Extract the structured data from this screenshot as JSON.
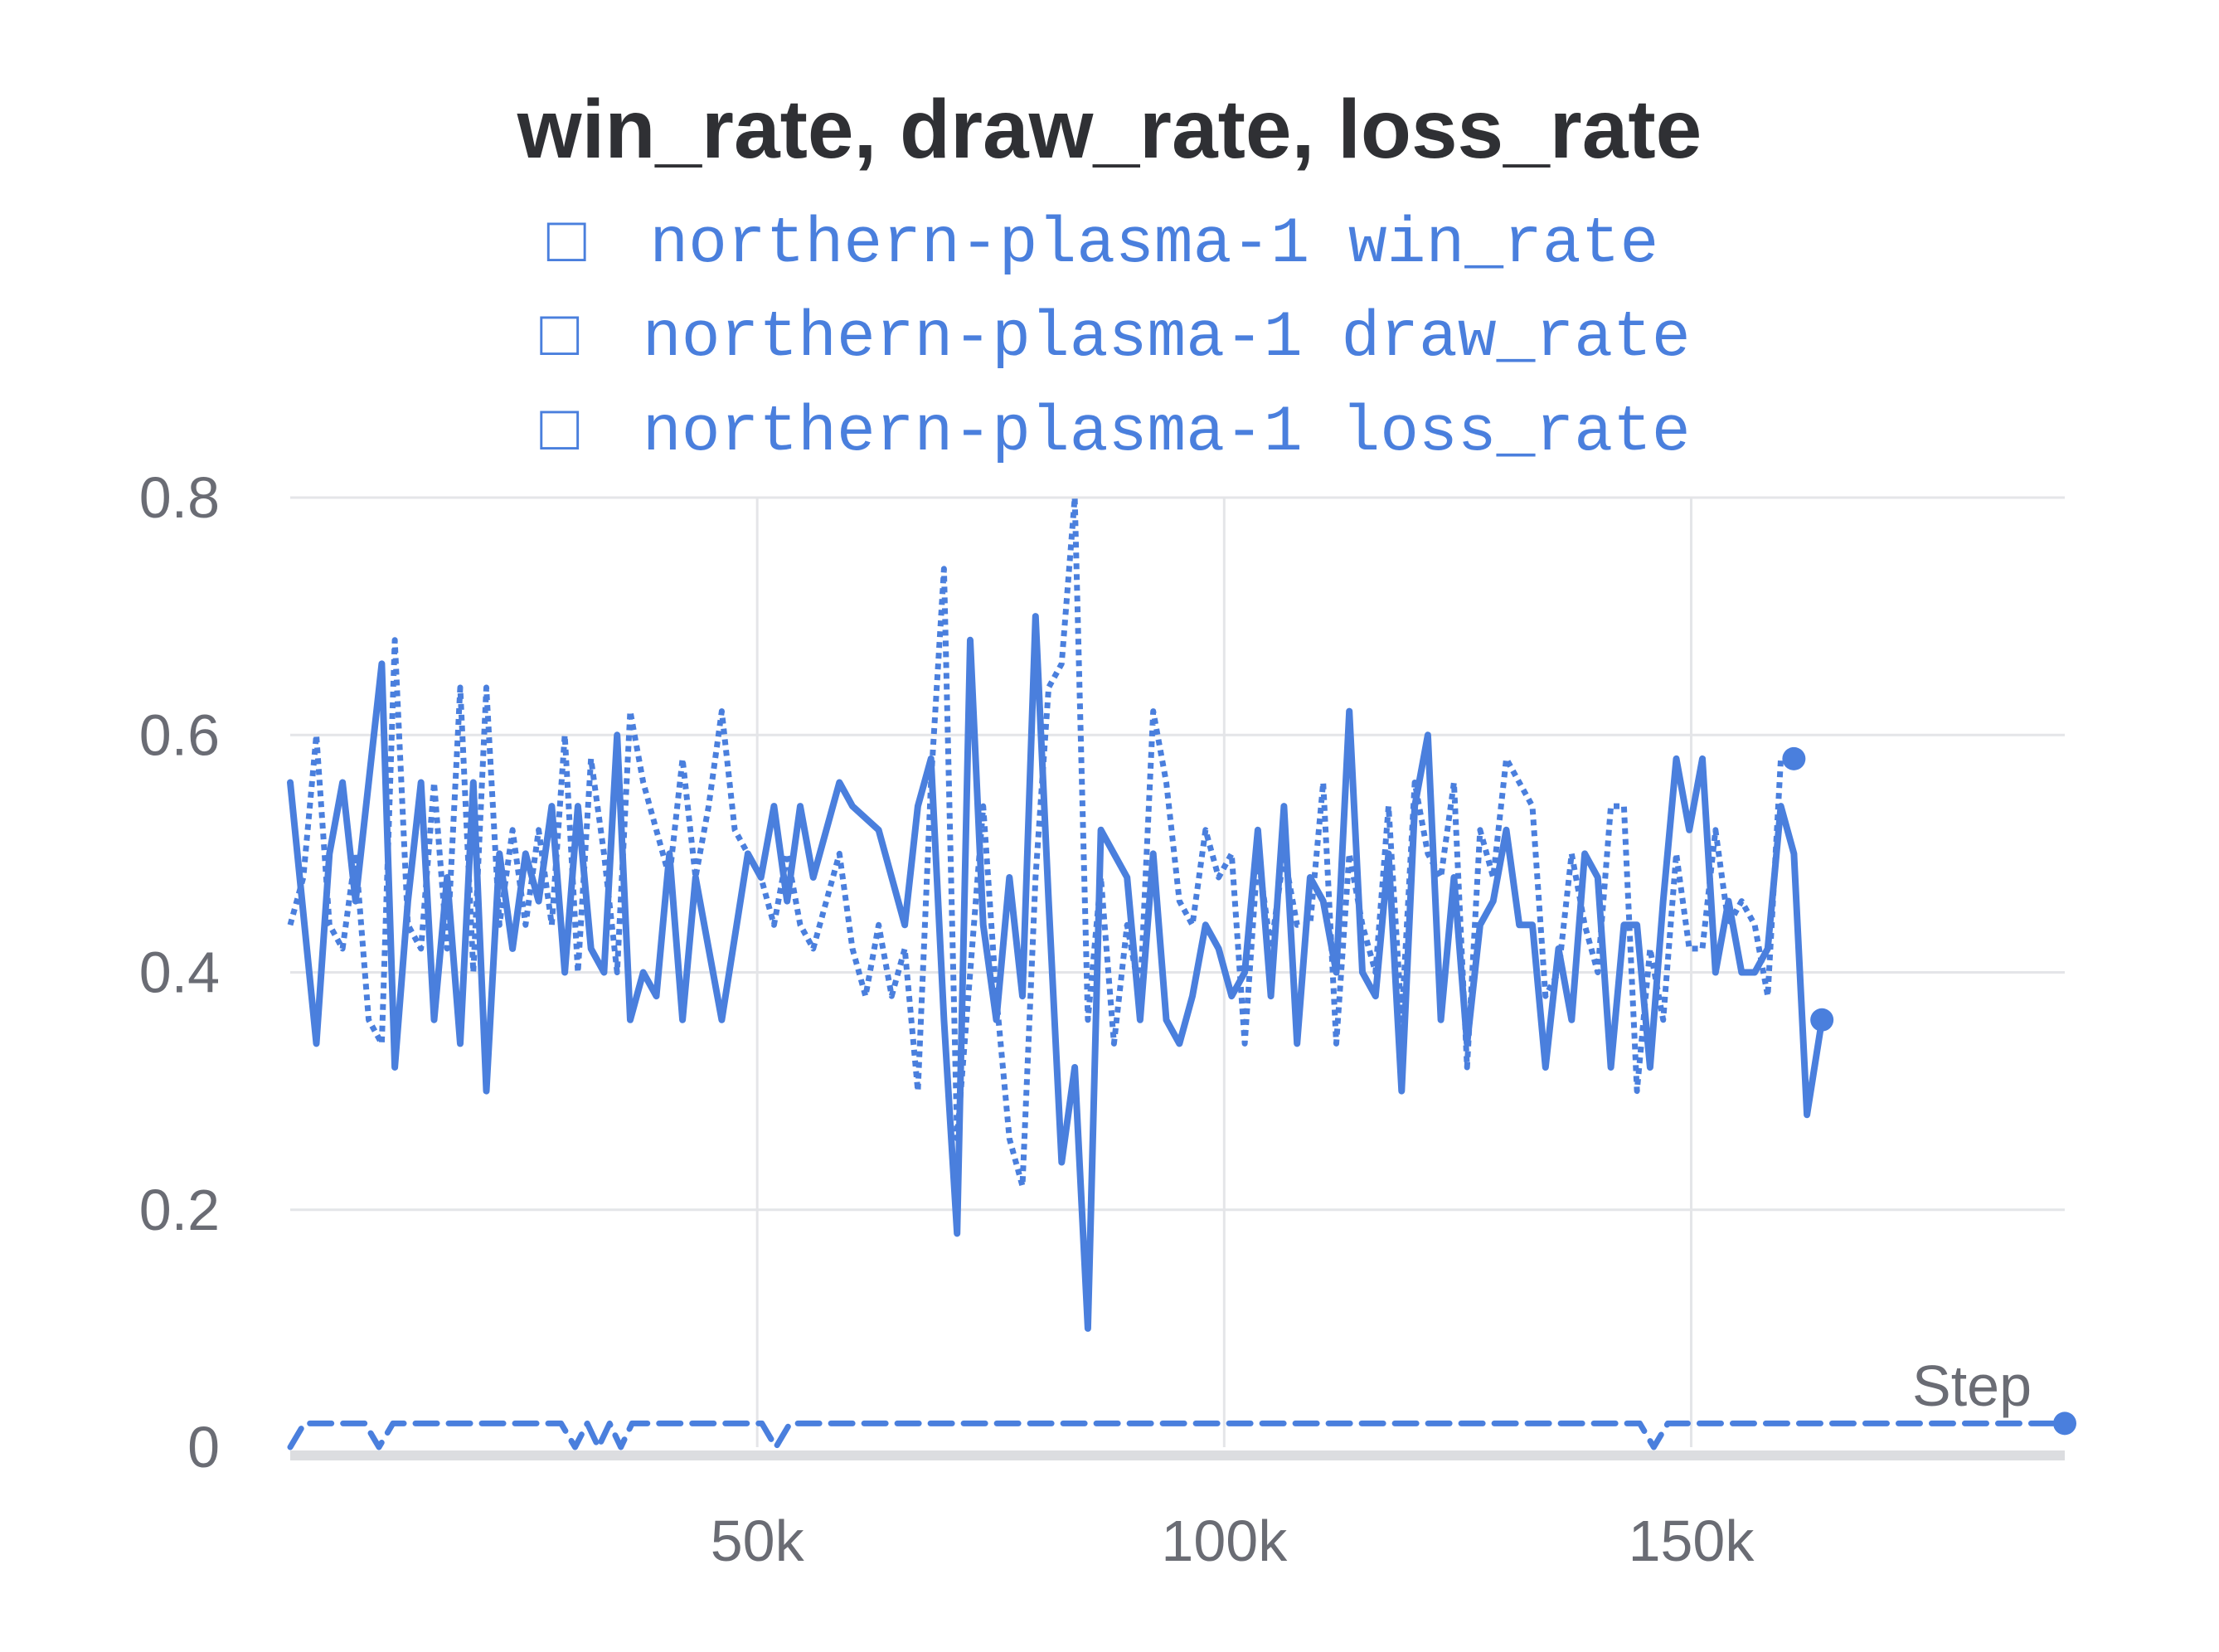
{
  "chart_data": {
    "type": "line",
    "title": "win_rate, draw_rate, loss_rate",
    "xlabel": "Step",
    "ylabel": "",
    "xlim": [
      0,
      190000
    ],
    "ylim": [
      0,
      0.8
    ],
    "x_ticks": [
      50000,
      100000,
      150000
    ],
    "x_tick_labels": [
      "50k",
      "100k",
      "150k"
    ],
    "y_ticks": [
      0,
      0.2,
      0.4,
      0.6,
      0.8
    ],
    "y_tick_labels": [
      "0",
      "0.2",
      "0.4",
      "0.6",
      "0.8"
    ],
    "grid": true,
    "legend_placement": "top",
    "line_color": "#4a7fdd",
    "legend": [
      {
        "marker": "□",
        "label": "northern-plasma-1 win_rate"
      },
      {
        "marker": "□",
        "label": "northern-plasma-1 draw_rate"
      },
      {
        "marker": "□",
        "label": "northern-plasma-1 loss_rate"
      }
    ],
    "series": [
      {
        "name": "northern-plasma-1 win_rate",
        "style": "solid",
        "points": [
          [
            0,
            0.56
          ],
          [
            2800,
            0.34
          ],
          [
            4200,
            0.5
          ],
          [
            5600,
            0.56
          ],
          [
            7000,
            0.46
          ],
          [
            8400,
            0.56
          ],
          [
            9800,
            0.66
          ],
          [
            11200,
            0.32
          ],
          [
            12600,
            0.46
          ],
          [
            14000,
            0.56
          ],
          [
            15400,
            0.36
          ],
          [
            16800,
            0.48
          ],
          [
            18200,
            0.34
          ],
          [
            19600,
            0.56
          ],
          [
            21000,
            0.3
          ],
          [
            22400,
            0.5
          ],
          [
            23800,
            0.42
          ],
          [
            25200,
            0.5
          ],
          [
            26600,
            0.46
          ],
          [
            28000,
            0.54
          ],
          [
            29400,
            0.4
          ],
          [
            30800,
            0.54
          ],
          [
            32200,
            0.42
          ],
          [
            33600,
            0.4
          ],
          [
            35000,
            0.6
          ],
          [
            36400,
            0.36
          ],
          [
            37800,
            0.4
          ],
          [
            39200,
            0.38
          ],
          [
            40600,
            0.5
          ],
          [
            42000,
            0.36
          ],
          [
            43400,
            0.48
          ],
          [
            46200,
            0.36
          ],
          [
            49000,
            0.5
          ],
          [
            50400,
            0.48
          ],
          [
            51800,
            0.54
          ],
          [
            53200,
            0.46
          ],
          [
            54600,
            0.54
          ],
          [
            56000,
            0.48
          ],
          [
            58800,
            0.56
          ],
          [
            60200,
            0.54
          ],
          [
            63000,
            0.52
          ],
          [
            65800,
            0.44
          ],
          [
            67200,
            0.54
          ],
          [
            68600,
            0.58
          ],
          [
            70000,
            0.36
          ],
          [
            71400,
            0.18
          ],
          [
            72800,
            0.68
          ],
          [
            74200,
            0.44
          ],
          [
            75600,
            0.36
          ],
          [
            77000,
            0.48
          ],
          [
            78400,
            0.38
          ],
          [
            79800,
            0.7
          ],
          [
            81200,
            0.46
          ],
          [
            82600,
            0.24
          ],
          [
            84000,
            0.32
          ],
          [
            85400,
            0.1
          ],
          [
            86800,
            0.52
          ],
          [
            88200,
            0.5
          ],
          [
            89600,
            0.48
          ],
          [
            91000,
            0.36
          ],
          [
            92400,
            0.5
          ],
          [
            93800,
            0.36
          ],
          [
            95200,
            0.34
          ],
          [
            96600,
            0.38
          ],
          [
            98000,
            0.44
          ],
          [
            99400,
            0.42
          ],
          [
            100800,
            0.38
          ],
          [
            102200,
            0.4
          ],
          [
            103600,
            0.52
          ],
          [
            105000,
            0.38
          ],
          [
            106400,
            0.54
          ],
          [
            107800,
            0.34
          ],
          [
            109200,
            0.48
          ],
          [
            110600,
            0.46
          ],
          [
            112000,
            0.4
          ],
          [
            113400,
            0.62
          ],
          [
            114800,
            0.4
          ],
          [
            116200,
            0.38
          ],
          [
            117600,
            0.5
          ],
          [
            119000,
            0.3
          ],
          [
            120400,
            0.54
          ],
          [
            121800,
            0.6
          ],
          [
            123200,
            0.36
          ],
          [
            124600,
            0.48
          ],
          [
            126000,
            0.34
          ],
          [
            127400,
            0.44
          ],
          [
            128800,
            0.46
          ],
          [
            130200,
            0.52
          ],
          [
            131600,
            0.44
          ],
          [
            133000,
            0.44
          ],
          [
            134400,
            0.32
          ],
          [
            135800,
            0.42
          ],
          [
            137200,
            0.36
          ],
          [
            138600,
            0.5
          ],
          [
            140000,
            0.48
          ],
          [
            141400,
            0.32
          ],
          [
            142800,
            0.44
          ],
          [
            144200,
            0.44
          ],
          [
            145600,
            0.32
          ],
          [
            147000,
            0.46
          ],
          [
            148400,
            0.58
          ],
          [
            149800,
            0.52
          ],
          [
            151200,
            0.58
          ],
          [
            152600,
            0.4
          ],
          [
            154000,
            0.46
          ],
          [
            155400,
            0.4
          ],
          [
            156800,
            0.4
          ],
          [
            158200,
            0.42
          ],
          [
            159600,
            0.54
          ],
          [
            161000,
            0.5
          ],
          [
            162400,
            0.28
          ],
          [
            164000,
            0.36
          ]
        ]
      },
      {
        "name": "northern-plasma-1 draw_rate",
        "style": "dashed",
        "points": [
          [
            0,
            0
          ],
          [
            1500,
            0.02
          ],
          [
            8000,
            0.02
          ],
          [
            9500,
            0
          ],
          [
            11000,
            0.02
          ],
          [
            29000,
            0.02
          ],
          [
            30500,
            0
          ],
          [
            31800,
            0.02
          ],
          [
            33000,
            0
          ],
          [
            34200,
            0.02
          ],
          [
            35400,
            0
          ],
          [
            36600,
            0.02
          ],
          [
            50500,
            0.02
          ],
          [
            52000,
            0
          ],
          [
            53500,
            0.02
          ],
          [
            144500,
            0.02
          ],
          [
            146000,
            0
          ],
          [
            147500,
            0.02
          ],
          [
            190000,
            0.02
          ]
        ]
      },
      {
        "name": "northern-plasma-1 loss_rate",
        "style": "dotted",
        "points": [
          [
            0,
            0.44
          ],
          [
            1400,
            0.48
          ],
          [
            2800,
            0.6
          ],
          [
            4200,
            0.44
          ],
          [
            5600,
            0.42
          ],
          [
            7000,
            0.5
          ],
          [
            8400,
            0.36
          ],
          [
            9800,
            0.34
          ],
          [
            11200,
            0.68
          ],
          [
            12600,
            0.44
          ],
          [
            14000,
            0.42
          ],
          [
            15400,
            0.56
          ],
          [
            16800,
            0.42
          ],
          [
            18200,
            0.64
          ],
          [
            19600,
            0.4
          ],
          [
            21000,
            0.64
          ],
          [
            22400,
            0.44
          ],
          [
            23800,
            0.52
          ],
          [
            25200,
            0.44
          ],
          [
            26600,
            0.52
          ],
          [
            28000,
            0.44
          ],
          [
            29400,
            0.6
          ],
          [
            30800,
            0.4
          ],
          [
            32200,
            0.58
          ],
          [
            33600,
            0.5
          ],
          [
            35000,
            0.4
          ],
          [
            36400,
            0.62
          ],
          [
            37800,
            0.56
          ],
          [
            39200,
            0.52
          ],
          [
            40600,
            0.48
          ],
          [
            42000,
            0.58
          ],
          [
            43400,
            0.48
          ],
          [
            44800,
            0.54
          ],
          [
            46200,
            0.62
          ],
          [
            47600,
            0.52
          ],
          [
            49000,
            0.5
          ],
          [
            50400,
            0.48
          ],
          [
            51800,
            0.44
          ],
          [
            53200,
            0.5
          ],
          [
            54600,
            0.44
          ],
          [
            56000,
            0.42
          ],
          [
            58800,
            0.5
          ],
          [
            60200,
            0.42
          ],
          [
            61600,
            0.38
          ],
          [
            63000,
            0.44
          ],
          [
            64400,
            0.38
          ],
          [
            65800,
            0.42
          ],
          [
            67200,
            0.3
          ],
          [
            68600,
            0.56
          ],
          [
            70000,
            0.74
          ],
          [
            71400,
            0.26
          ],
          [
            72800,
            0.4
          ],
          [
            74200,
            0.54
          ],
          [
            75600,
            0.38
          ],
          [
            77000,
            0.26
          ],
          [
            78400,
            0.22
          ],
          [
            79800,
            0.48
          ],
          [
            81200,
            0.64
          ],
          [
            82600,
            0.66
          ],
          [
            84000,
            0.8
          ],
          [
            85400,
            0.36
          ],
          [
            86800,
            0.48
          ],
          [
            88200,
            0.34
          ],
          [
            89600,
            0.44
          ],
          [
            91000,
            0.38
          ],
          [
            92400,
            0.62
          ],
          [
            93800,
            0.56
          ],
          [
            95200,
            0.46
          ],
          [
            96600,
            0.44
          ],
          [
            98000,
            0.52
          ],
          [
            99400,
            0.48
          ],
          [
            100800,
            0.5
          ],
          [
            102200,
            0.34
          ],
          [
            103600,
            0.5
          ],
          [
            105000,
            0.42
          ],
          [
            106400,
            0.5
          ],
          [
            107800,
            0.44
          ],
          [
            109200,
            0.44
          ],
          [
            110600,
            0.56
          ],
          [
            112000,
            0.34
          ],
          [
            113400,
            0.5
          ],
          [
            114800,
            0.44
          ],
          [
            116200,
            0.4
          ],
          [
            117600,
            0.54
          ],
          [
            119000,
            0.36
          ],
          [
            120400,
            0.56
          ],
          [
            121800,
            0.5
          ],
          [
            123200,
            0.48
          ],
          [
            124600,
            0.56
          ],
          [
            126000,
            0.32
          ],
          [
            127400,
            0.52
          ],
          [
            128800,
            0.48
          ],
          [
            130200,
            0.58
          ],
          [
            131600,
            0.56
          ],
          [
            133000,
            0.54
          ],
          [
            134400,
            0.38
          ],
          [
            135800,
            0.4
          ],
          [
            137200,
            0.5
          ],
          [
            138600,
            0.44
          ],
          [
            140000,
            0.4
          ],
          [
            141400,
            0.54
          ],
          [
            142800,
            0.54
          ],
          [
            144200,
            0.3
          ],
          [
            145600,
            0.42
          ],
          [
            147000,
            0.36
          ],
          [
            148400,
            0.5
          ],
          [
            149800,
            0.42
          ],
          [
            151200,
            0.42
          ],
          [
            152600,
            0.52
          ],
          [
            154000,
            0.44
          ],
          [
            155400,
            0.46
          ],
          [
            156800,
            0.44
          ],
          [
            158200,
            0.38
          ],
          [
            159600,
            0.58
          ],
          [
            161000,
            0.58
          ]
        ]
      }
    ]
  }
}
